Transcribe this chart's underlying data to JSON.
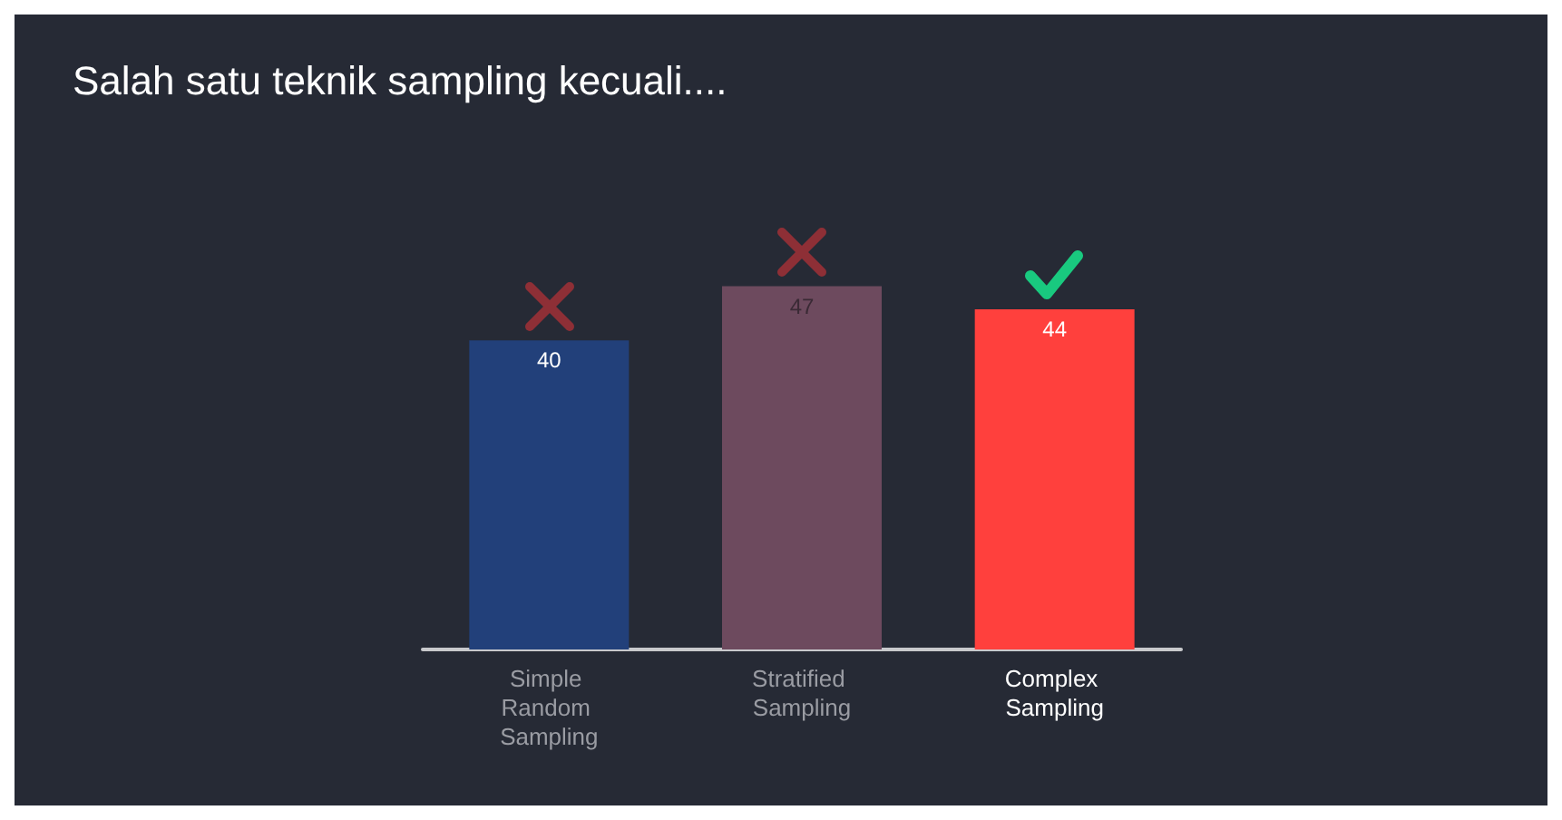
{
  "chart_data": {
    "type": "bar",
    "title": "Salah satu teknik sampling kecuali....",
    "categories": [
      "Simple Random Sampling",
      "Stratified Sampling",
      "Complex Sampling"
    ],
    "values": [
      40,
      47,
      44
    ],
    "colors": [
      "#22407a",
      "#6d4a5e",
      "#ff403d"
    ],
    "data_labels": true
  }
}
